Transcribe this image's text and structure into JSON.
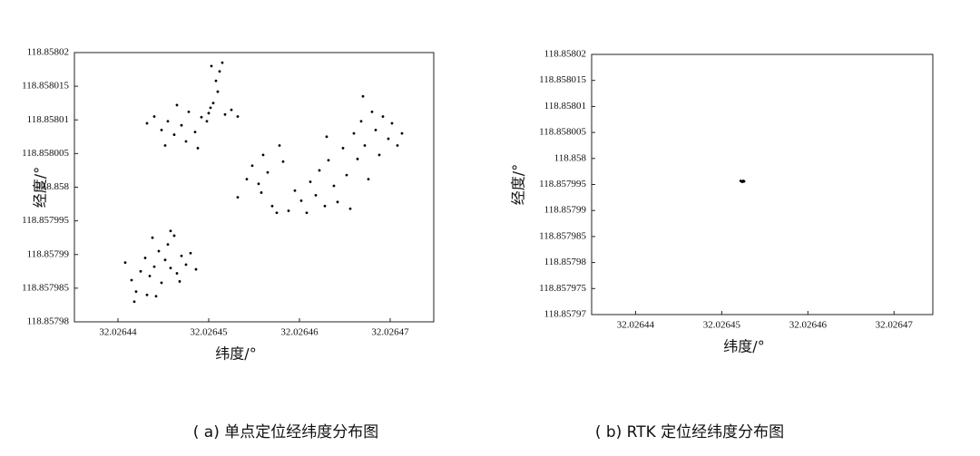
{
  "chart_data": [
    {
      "type": "scatter",
      "caption": "( a) 单点定位经纬度分布图",
      "xlabel": "纬度/°",
      "ylabel": "经度/°",
      "xlim": [
        32.0264352,
        32.0264748
      ],
      "ylim": [
        118.85798,
        118.85802
      ],
      "xticks": [
        32.02644,
        32.02645,
        32.02646,
        32.02647
      ],
      "yticks": [
        118.85798,
        118.857985,
        118.85799,
        118.857995,
        118.858,
        118.858005,
        118.85801,
        118.858015,
        118.85802
      ],
      "series": [
        {
          "color": "#000000",
          "x": [
            32.0264432,
            32.026444,
            32.0264448,
            32.0264455,
            32.0264462,
            32.026447,
            32.0264478,
            32.0264485,
            32.0264492,
            32.02645,
            32.0264505,
            32.0264498,
            32.026451,
            32.0264508,
            32.0264512,
            32.0264515,
            32.0264502,
            32.0264518,
            32.0264525,
            32.0264532,
            32.0264465,
            32.0264475,
            32.0264452,
            32.0264488,
            32.0264503,
            32.0264408,
            32.0264415,
            32.026442,
            32.0264425,
            32.026443,
            32.0264435,
            32.026444,
            32.0264445,
            32.0264448,
            32.0264452,
            32.0264455,
            32.0264458,
            32.0264462,
            32.0264465,
            32.026447,
            32.0264475,
            32.026448,
            32.0264486,
            32.0264432,
            32.0264442,
            32.0264418,
            32.0264438,
            32.0264468,
            32.0264458,
            32.0264532,
            32.0264542,
            32.0264548,
            32.0264555,
            32.026456,
            32.0264565,
            32.026457,
            32.0264575,
            32.0264578,
            32.0264582,
            32.0264588,
            32.0264595,
            32.0264602,
            32.0264608,
            32.0264558,
            32.0264612,
            32.0264618,
            32.0264622,
            32.0264628,
            32.0264632,
            32.0264638,
            32.0264642,
            32.0264648,
            32.0264652,
            32.0264656,
            32.026466,
            32.0264664,
            32.0264668,
            32.0264672,
            32.0264676,
            32.026468,
            32.0264684,
            32.0264688,
            32.0264692,
            32.0264698,
            32.0264702,
            32.0264708,
            32.026467,
            32.026463,
            32.0264713
          ],
          "values": [
            118.8580095,
            118.8580105,
            118.8580085,
            118.8580098,
            118.8580078,
            118.8580092,
            118.8580112,
            118.8580082,
            118.8580104,
            118.858011,
            118.8580125,
            118.8580098,
            118.8580142,
            118.8580158,
            118.8580172,
            118.8580185,
            118.8580118,
            118.8580108,
            118.8580115,
            118.8580105,
            118.8580122,
            118.8580068,
            118.8580062,
            118.8580058,
            118.858018,
            118.8579888,
            118.8579862,
            118.8579845,
            118.8579875,
            118.8579895,
            118.8579868,
            118.8579882,
            118.8579905,
            118.8579858,
            118.8579892,
            118.8579915,
            118.857988,
            118.8579928,
            118.8579872,
            118.8579898,
            118.8579885,
            118.8579902,
            118.8579878,
            118.857984,
            118.8579838,
            118.857983,
            118.8579925,
            118.857986,
            118.8579935,
            118.8579985,
            118.8580012,
            118.8580032,
            118.8580005,
            118.8580048,
            118.8580022,
            118.8579972,
            118.8579962,
            118.8580062,
            118.8580038,
            118.8579965,
            118.8579995,
            118.857998,
            118.8579962,
            118.8579992,
            118.8580008,
            118.8579988,
            118.8580025,
            118.8579972,
            118.858004,
            118.8580002,
            118.8579978,
            118.8580058,
            118.8580018,
            118.8579968,
            118.858008,
            118.8580042,
            118.8580098,
            118.8580062,
            118.8580012,
            118.8580112,
            118.8580085,
            118.8580048,
            118.8580105,
            118.8580072,
            118.8580095,
            118.8580062,
            118.8580135,
            118.8580075,
            118.858008
          ]
        }
      ]
    },
    {
      "type": "scatter",
      "caption": "( b) RTK 定位经纬度分布图",
      "xlabel": "纬度/°",
      "ylabel": "经度/°",
      "xlim": [
        32.0264349,
        32.0264745
      ],
      "ylim": [
        118.85797,
        118.85802
      ],
      "xticks": [
        32.02644,
        32.02645,
        32.02646,
        32.02647
      ],
      "yticks": [
        118.85797,
        118.857975,
        118.85798,
        118.857985,
        118.85799,
        118.857995,
        118.858,
        118.858005,
        118.85801,
        118.858015,
        118.85802
      ],
      "series": [
        {
          "color": "#000000",
          "x": [
            32.0264523,
            32.0264525,
            32.0264524,
            32.0264526,
            32.0264522
          ],
          "values": [
            118.8579956,
            118.8579957,
            118.8579955,
            118.8579956,
            118.8579957
          ]
        }
      ]
    }
  ]
}
